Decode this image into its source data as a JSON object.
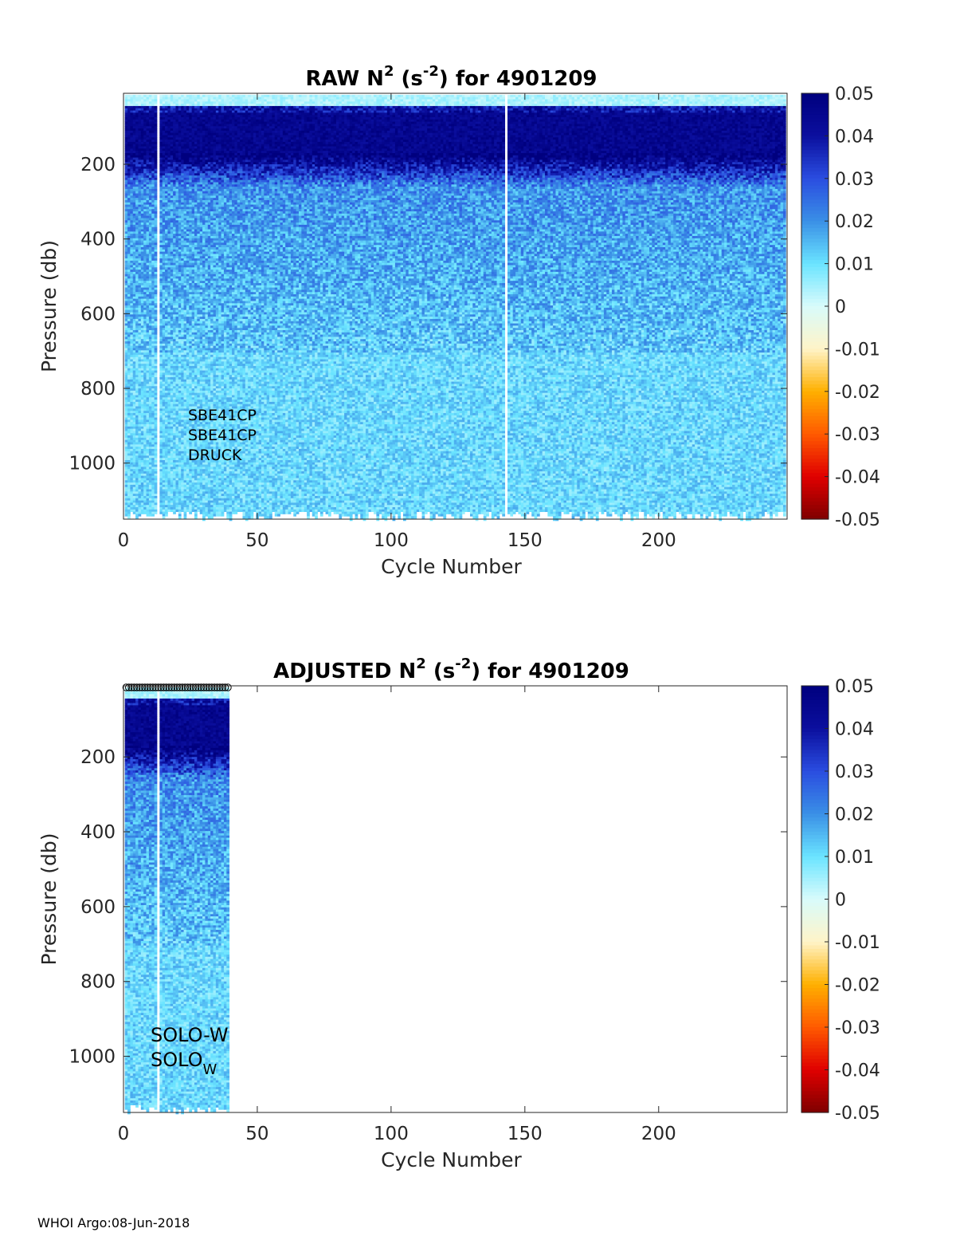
{
  "footer": "WHOI Argo:08-Jun-2018",
  "colorbar": {
    "ticks": [
      "0.05",
      "0.04",
      "0.03",
      "0.02",
      "0.01",
      "0",
      "-0.01",
      "-0.02",
      "-0.03",
      "-0.04",
      "-0.05"
    ],
    "range": [
      -0.05,
      0.05
    ],
    "colors": [
      "#7f0000",
      "#e00000",
      "#ff5a00",
      "#ffb000",
      "#fff4c8",
      "#d8fbfb",
      "#6ae4ff",
      "#3a8fe6",
      "#2a4de0",
      "#0b0f9e",
      "#00007f"
    ]
  },
  "chart_data": [
    {
      "type": "heatmap",
      "title_main": "RAW N",
      "title_sup1": "2",
      "title_mid": " (s",
      "title_sup2": "-2",
      "title_end": ") for 4901209",
      "xlabel": "Cycle Number",
      "ylabel": "Pressure (db)",
      "xlim": [
        0,
        248
      ],
      "ylim": [
        1150,
        10
      ],
      "xticks": [
        "0",
        "50",
        "100",
        "150",
        "200"
      ],
      "yticks": [
        "200",
        "400",
        "600",
        "800",
        "1000"
      ],
      "cycles_with_data": [
        1,
        247
      ],
      "missing_cycles": [
        13,
        143
      ],
      "sensor_text": [
        "SBE41CP",
        "SBE41CP",
        "DRUCK"
      ]
    },
    {
      "type": "heatmap",
      "title_main": "ADJUSTED N",
      "title_sup1": "2",
      "title_mid": " (s",
      "title_sup2": "-2",
      "title_end": ") for 4901209",
      "xlabel": "Cycle Number",
      "ylabel": "Pressure (db)",
      "xlim": [
        0,
        248
      ],
      "ylim": [
        1150,
        10
      ],
      "xticks": [
        "0",
        "50",
        "100",
        "150",
        "200"
      ],
      "yticks": [
        "200",
        "400",
        "600",
        "800",
        "1000"
      ],
      "cycles_with_data": [
        1,
        39
      ],
      "missing_cycles": [
        13
      ],
      "circle_markers_at_top": true,
      "sensor_text": [
        "SOLO-W",
        "SOLO"
      ],
      "sensor_subscript": "W"
    }
  ]
}
